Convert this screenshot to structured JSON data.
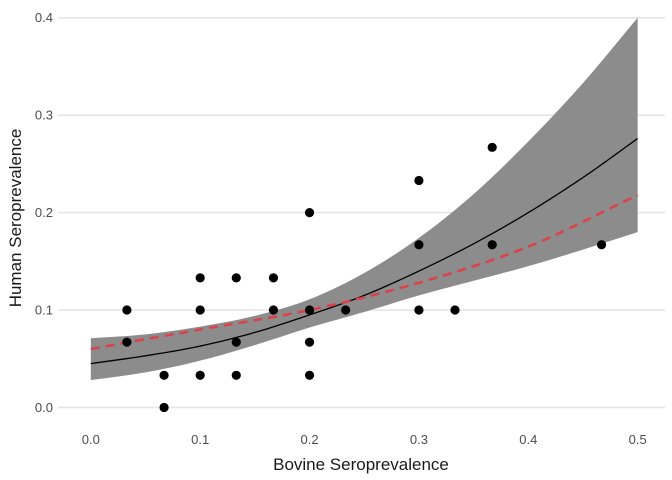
{
  "chart_data": {
    "type": "scatter",
    "xlabel": "Bovine Seroprevalence",
    "ylabel": "Human Seroprevalence",
    "xlim": [
      -0.03,
      0.525
    ],
    "ylim": [
      -0.017,
      0.41
    ],
    "x_ticks": [
      0.0,
      0.1,
      0.2,
      0.3,
      0.4,
      0.5
    ],
    "x_tick_labels": [
      "0.0",
      "0.1",
      "0.2",
      "0.3",
      "0.4",
      "0.5"
    ],
    "y_ticks": [
      0.0,
      0.1,
      0.2,
      0.3,
      0.4
    ],
    "y_tick_labels": [
      "0.0",
      "0.1",
      "0.2",
      "0.3",
      "0.4"
    ],
    "grid": "horizontal major lines",
    "legend": "none",
    "colors": {
      "points": "#000000",
      "fit_line": "#000000",
      "confidence_band": "#8c8c8c",
      "dashed_line": "#d9444a",
      "grid": "#e5e5e5"
    },
    "points": [
      {
        "x": 0.033,
        "y": 0.1
      },
      {
        "x": 0.033,
        "y": 0.067
      },
      {
        "x": 0.067,
        "y": 0.033
      },
      {
        "x": 0.067,
        "y": 0.0
      },
      {
        "x": 0.1,
        "y": 0.133
      },
      {
        "x": 0.1,
        "y": 0.1
      },
      {
        "x": 0.1,
        "y": 0.033
      },
      {
        "x": 0.133,
        "y": 0.133
      },
      {
        "x": 0.133,
        "y": 0.067
      },
      {
        "x": 0.133,
        "y": 0.033
      },
      {
        "x": 0.167,
        "y": 0.133
      },
      {
        "x": 0.167,
        "y": 0.1
      },
      {
        "x": 0.2,
        "y": 0.2
      },
      {
        "x": 0.2,
        "y": 0.1
      },
      {
        "x": 0.2,
        "y": 0.067
      },
      {
        "x": 0.2,
        "y": 0.033
      },
      {
        "x": 0.233,
        "y": 0.1
      },
      {
        "x": 0.3,
        "y": 0.233
      },
      {
        "x": 0.3,
        "y": 0.167
      },
      {
        "x": 0.3,
        "y": 0.1
      },
      {
        "x": 0.333,
        "y": 0.1
      },
      {
        "x": 0.367,
        "y": 0.267
      },
      {
        "x": 0.367,
        "y": 0.167
      },
      {
        "x": 0.467,
        "y": 0.167
      }
    ],
    "fit_curve": {
      "style": "solid",
      "x": [
        0.0,
        0.05,
        0.1,
        0.15,
        0.2,
        0.25,
        0.3,
        0.35,
        0.4,
        0.45,
        0.5
      ],
      "y": [
        0.045,
        0.053,
        0.063,
        0.077,
        0.095,
        0.115,
        0.14,
        0.168,
        0.2,
        0.236,
        0.276
      ],
      "lower": [
        0.028,
        0.036,
        0.048,
        0.064,
        0.082,
        0.098,
        0.115,
        0.13,
        0.145,
        0.162,
        0.18
      ],
      "upper": [
        0.071,
        0.075,
        0.083,
        0.094,
        0.111,
        0.138,
        0.174,
        0.219,
        0.273,
        0.333,
        0.4
      ]
    },
    "dashed_curve": {
      "style": "dashed",
      "x": [
        0.0,
        0.1,
        0.2,
        0.3,
        0.4,
        0.5
      ],
      "y": [
        0.06,
        0.08,
        0.1,
        0.128,
        0.165,
        0.218
      ]
    }
  }
}
